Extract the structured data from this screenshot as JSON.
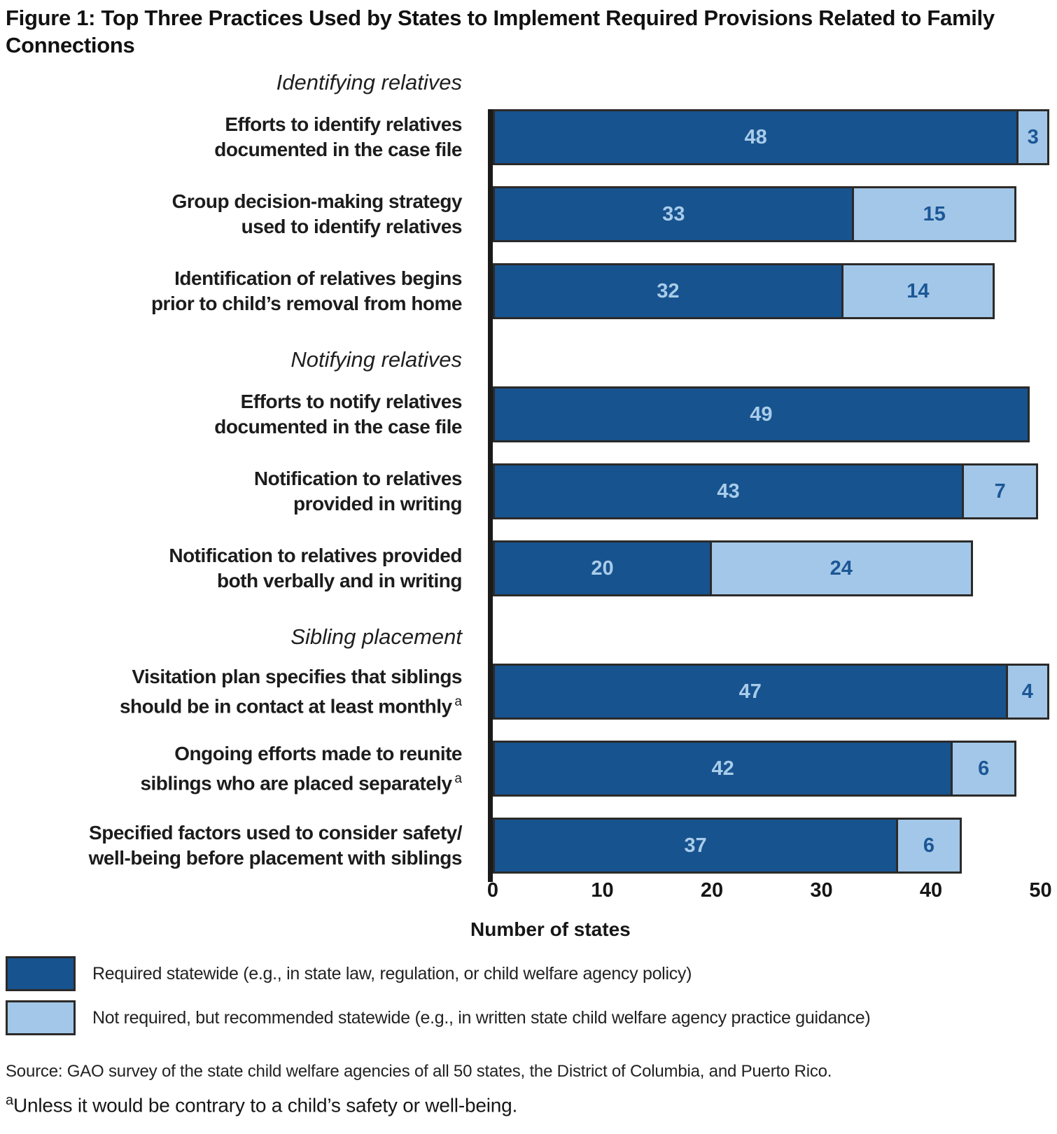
{
  "figure": {
    "title": "Figure 1: Top Three Practices Used by States to Implement Required Provisions Related to Family Connections",
    "xlabel": "Number of states",
    "source": "Source: GAO survey of the state child welfare agencies of all 50 states, the District of Columbia, and Puerto Rico.",
    "footnote_marker": "a",
    "footnote": "Unless it would be contrary to a child’s safety or well-being."
  },
  "colors": {
    "required": "#17538E",
    "recommended": "#A3C7E8",
    "bar_border": "#2B2A29",
    "axis": "#1A1A1A",
    "value_on_required": "#A9CCEA",
    "value_on_recommended": "#1C5796"
  },
  "legend": [
    {
      "series": "required",
      "color": "#17538E",
      "label": "Required statewide (e.g., in state law, regulation, or child welfare agency policy)"
    },
    {
      "series": "recommended",
      "color": "#A3C7E8",
      "label": "Not required, but recommended statewide (e.g., in written state child welfare agency practice guidance)"
    }
  ],
  "chart_data": {
    "type": "bar",
    "orientation": "horizontal",
    "stacked": true,
    "title": "Top Three Practices Used by States to Implement Required Provisions Related to Family Connections",
    "xlabel": "Number of states",
    "xlim": [
      0,
      51.5
    ],
    "xticks": [
      0,
      10,
      20,
      30,
      40,
      50
    ],
    "grid": false,
    "legend_position": "bottom-left",
    "categories": [
      "Efforts to identify relatives documented in the case file",
      "Group decision-making strategy used to identify relatives",
      "Identification of relatives begins prior to child’s removal from home",
      "Efforts to notify relatives documented in the case file",
      "Notification to relatives provided in writing",
      "Notification to relatives provided both verbally and in writing",
      "Visitation plan specifies that siblings should be in contact at least monthly",
      "Ongoing efforts made to reunite siblings who are placed separately",
      "Specified factors used to consider safety/well-being before placement with siblings"
    ],
    "series": [
      {
        "name": "Required statewide (e.g., in state law, regulation, or child welfare agency policy)",
        "color": "#17538E",
        "values": [
          48,
          33,
          32,
          49,
          43,
          20,
          47,
          42,
          37
        ]
      },
      {
        "name": "Not required, but recommended statewide (e.g., in written state child welfare agency practice guidance)",
        "color": "#A3C7E8",
        "values": [
          3,
          15,
          14,
          0,
          7,
          24,
          4,
          6,
          6
        ]
      }
    ],
    "groups": [
      {
        "group": "Identifying relatives",
        "bars": [
          {
            "label_lines": [
              "Efforts to identify relatives",
              "documented in the case file"
            ],
            "superscript": "",
            "required": 48,
            "recommended": 3
          },
          {
            "label_lines": [
              "Group decision-making strategy",
              "used to identify relatives"
            ],
            "superscript": "",
            "required": 33,
            "recommended": 15
          },
          {
            "label_lines": [
              "Identification of relatives begins",
              "prior to child’s removal from home"
            ],
            "superscript": "",
            "required": 32,
            "recommended": 14
          }
        ]
      },
      {
        "group": "Notifying relatives",
        "bars": [
          {
            "label_lines": [
              "Efforts to notify relatives",
              "documented in the case file"
            ],
            "superscript": "",
            "required": 49,
            "recommended": 0
          },
          {
            "label_lines": [
              "Notification to relatives",
              "provided in writing"
            ],
            "superscript": "",
            "required": 43,
            "recommended": 7
          },
          {
            "label_lines": [
              "Notification to relatives provided",
              "both verbally and in writing"
            ],
            "superscript": "",
            "required": 20,
            "recommended": 24
          }
        ]
      },
      {
        "group": "Sibling placement",
        "bars": [
          {
            "label_lines": [
              "Visitation plan specifies that siblings",
              "should be in contact at least monthly"
            ],
            "superscript": "a",
            "required": 47,
            "recommended": 4
          },
          {
            "label_lines": [
              "Ongoing efforts made to reunite",
              "siblings who are placed separately"
            ],
            "superscript": "a",
            "required": 42,
            "recommended": 6
          },
          {
            "label_lines": [
              "Specified factors used to consider safety/",
              "well-being before placement with siblings"
            ],
            "superscript": "",
            "required": 37,
            "recommended": 6
          }
        ]
      }
    ]
  }
}
